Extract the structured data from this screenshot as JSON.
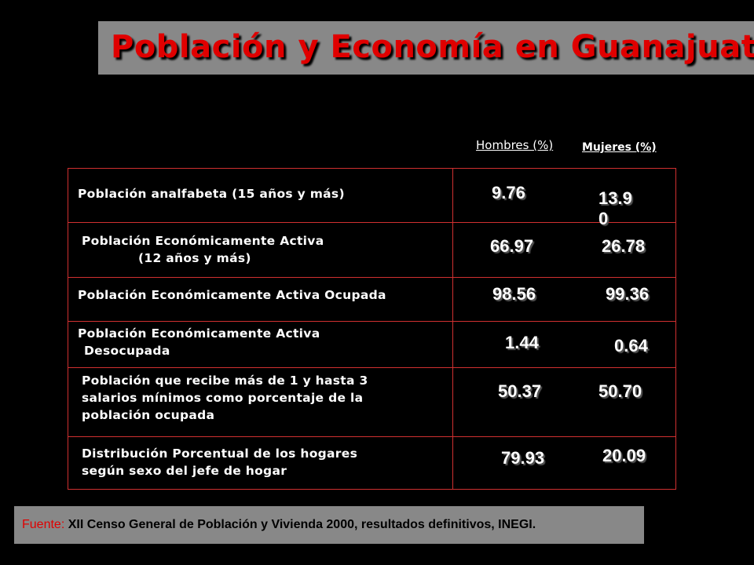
{
  "title": "Población y Economía en Guanajuato",
  "columns": {
    "men": "Hombres (%)",
    "women": "Mujeres (%)"
  },
  "rows": [
    {
      "label_lines": [
        "Población analfabeta (15 años y más)"
      ],
      "men": "9.76",
      "women_lines": [
        "13.9",
        "0"
      ]
    },
    {
      "label_lines": [
        "Población Económicamente  Activa",
        "(12 años y más)"
      ],
      "men": "66.97",
      "women": "26.78"
    },
    {
      "label_lines": [
        "Población Económicamente  Activa Ocupada"
      ],
      "men": "98.56",
      "women": "99.36"
    },
    {
      "label_lines": [
        "Población Económicamente  Activa",
        "Desocupada"
      ],
      "men": "1.44",
      "women": "0.64"
    },
    {
      "label_lines": [
        "Población que recibe más de 1 y hasta 3",
        "salarios mínimos como porcentaje de la",
        "población ocupada"
      ],
      "men": "50.37",
      "women": "50.70"
    },
    {
      "label_lines": [
        "Distribución Porcentual de los hogares",
        "según sexo del jefe de hogar"
      ],
      "men": "79.93",
      "women": "20.09"
    }
  ],
  "footer": {
    "prefix": "Fuente: ",
    "text": "XII Censo General de Población y Vivienda 2000, resultados definitivos, INEGI."
  },
  "colors": {
    "title": "#e00000",
    "border": "#d03030",
    "bar": "#888888",
    "background": "#000000"
  }
}
